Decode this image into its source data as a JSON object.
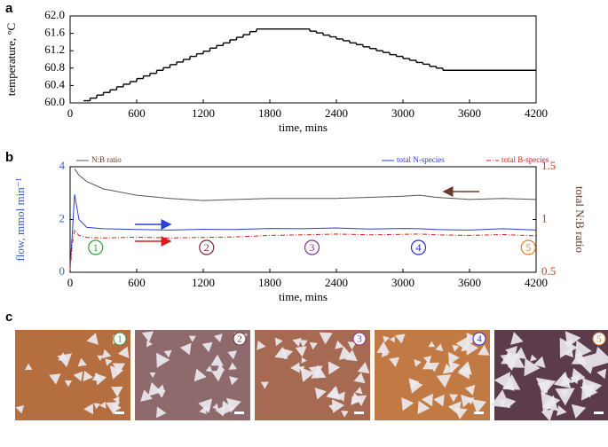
{
  "chart_data": [
    {
      "type": "step",
      "panel": "a",
      "xlabel": "time, mins",
      "ylabel": "temperature, °C",
      "x": [
        120,
        180,
        240,
        300,
        360,
        420,
        480,
        540,
        600,
        660,
        720,
        780,
        840,
        900,
        960,
        1020,
        1080,
        1140,
        1200,
        1260,
        1320,
        1380,
        1440,
        1500,
        1560,
        1620,
        1680,
        2160,
        2220,
        2280,
        2340,
        2400,
        2460,
        2520,
        2580,
        2640,
        2700,
        2760,
        2820,
        2880,
        2940,
        3000,
        3060,
        3120,
        3180,
        3240,
        3300,
        3360
      ],
      "values": [
        60.05,
        60.11,
        60.18,
        60.24,
        60.3,
        60.37,
        60.43,
        60.49,
        60.56,
        60.62,
        60.68,
        60.75,
        60.81,
        60.88,
        60.94,
        61.0,
        61.07,
        61.13,
        61.19,
        61.26,
        61.32,
        61.38,
        61.45,
        61.51,
        61.57,
        61.64,
        61.7,
        61.65,
        61.61,
        61.56,
        61.52,
        61.47,
        61.43,
        61.38,
        61.34,
        61.29,
        61.25,
        61.2,
        61.16,
        61.11,
        61.07,
        61.02,
        60.98,
        60.93,
        60.89,
        60.84,
        60.8,
        60.75
      ],
      "color": "#000000",
      "xlim": [
        0,
        4200
      ],
      "xticks": [
        0,
        600,
        1200,
        1800,
        2400,
        3000,
        3600,
        4200
      ],
      "ylim": [
        60,
        62
      ],
      "yticks": [
        {
          "value": 60,
          "label": "60.0"
        },
        60.4,
        60.8,
        61.2,
        61.6,
        {
          "value": 62,
          "label": "62.0"
        }
      ]
    },
    {
      "type": "line",
      "panel": "b",
      "xlabel": "time, mins",
      "ylabel": "flow, mmol min⁻¹",
      "y2label": "total N:B ratio",
      "x": [
        0,
        20,
        40,
        80,
        150,
        300,
        600,
        900,
        1200,
        1500,
        1800,
        2100,
        2400,
        2700,
        3000,
        3150,
        3300,
        3600,
        3900,
        4200
      ],
      "series": [
        {
          "name": "N:B ratio",
          "color": "#555555",
          "axis": "y2",
          "style": "solid",
          "values": [
            null,
            null,
            1.48,
            1.42,
            1.36,
            1.29,
            1.23,
            1.2,
            1.18,
            1.19,
            1.2,
            1.2,
            1.2,
            1.21,
            1.22,
            1.23,
            1.21,
            1.19,
            1.2,
            1.19
          ]
        },
        {
          "name": "total N-species",
          "color": "#2a3fd6",
          "style": "solid",
          "values": [
            0.2,
            1.5,
            2.95,
            2.0,
            1.7,
            1.65,
            1.62,
            1.6,
            1.63,
            1.62,
            1.66,
            1.65,
            1.68,
            1.64,
            1.66,
            1.65,
            1.62,
            1.6,
            1.65,
            1.6
          ]
        },
        {
          "name": "total B-species",
          "color": "#d62020",
          "style": "dash-dot",
          "values": [
            0.1,
            1.1,
            1.6,
            1.4,
            1.32,
            1.3,
            1.33,
            1.3,
            1.32,
            1.34,
            1.4,
            1.42,
            1.45,
            1.42,
            1.44,
            1.45,
            1.42,
            1.4,
            1.43,
            1.38
          ]
        }
      ],
      "annotations": [
        {
          "text": "1",
          "x": 230,
          "color": "#3a9a3a"
        },
        {
          "text": "2",
          "x": 1230,
          "color": "#7a2a2a"
        },
        {
          "text": "3",
          "x": 2180,
          "color": "#8a2aa0"
        },
        {
          "text": "4",
          "x": 3140,
          "color": "#2a2ad0"
        },
        {
          "text": "5",
          "x": 4130,
          "color": "#e08030"
        }
      ],
      "xlim": [
        0,
        4200
      ],
      "xticks": [
        0,
        600,
        1200,
        1800,
        2400,
        3000,
        3600,
        4200
      ],
      "ylim": [
        0,
        4
      ],
      "yticks": [
        0,
        2,
        4
      ],
      "y2lim": [
        0.5,
        1.5
      ],
      "y2ticks": [
        0.5,
        1,
        1.5
      ]
    }
  ],
  "micrographs": {
    "panel": "c",
    "labels": [
      "1",
      "2",
      "3",
      "4",
      "5"
    ],
    "label_colors": [
      "#3a9a3a",
      "#7a2a2a",
      "#8a2aa0",
      "#2a2ad0",
      "#e08030"
    ]
  }
}
